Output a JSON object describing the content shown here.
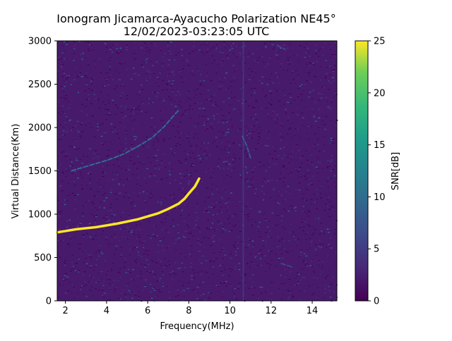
{
  "chart_data": {
    "type": "heatmap",
    "title_line1": "Ionogram Jicamarca-Ayacucho Polarization NE45°",
    "title_line2": "12/02/2023-03:23:05 UTC",
    "xlabel": "Frequency(MHz)",
    "ylabel": "Virtual Distance(Km)",
    "colorbar_label": "SNR[dB]",
    "colormap": "viridis",
    "xlim": [
      1.6,
      15.2
    ],
    "ylim": [
      0,
      3000
    ],
    "clim": [
      0,
      25
    ],
    "x_ticks": [
      2,
      4,
      6,
      8,
      10,
      12,
      14
    ],
    "x_tick_labels": [
      "2",
      "4",
      "6",
      "8",
      "10",
      "12",
      "14"
    ],
    "y_ticks": [
      0,
      500,
      1000,
      1500,
      2000,
      2500,
      3000
    ],
    "y_tick_labels": [
      "0",
      "500",
      "1000",
      "1500",
      "2000",
      "2500",
      "3000"
    ],
    "colorbar_ticks": [
      0,
      5,
      10,
      15,
      20,
      25
    ],
    "colorbar_tick_labels": [
      "0",
      "5",
      "10",
      "15",
      "20",
      "25"
    ],
    "background_snr_db": 1.5,
    "traces": [
      {
        "name": "",
        "snr_db": 25,
        "points": [
          [
            1.6,
            790
          ],
          [
            2.5,
            825
          ],
          [
            3.5,
            850
          ],
          [
            4.5,
            890
          ],
          [
            5.5,
            940
          ],
          [
            6.5,
            1010
          ],
          [
            7.0,
            1060
          ],
          [
            7.5,
            1120
          ],
          [
            7.8,
            1180
          ],
          [
            8.0,
            1240
          ],
          [
            8.3,
            1320
          ],
          [
            8.5,
            1410
          ]
        ]
      },
      {
        "name": "",
        "snr_db": 10,
        "points": [
          [
            2.3,
            1500
          ],
          [
            3.0,
            1550
          ],
          [
            4.0,
            1620
          ],
          [
            4.8,
            1690
          ],
          [
            5.5,
            1780
          ],
          [
            6.2,
            1880
          ],
          [
            6.8,
            2010
          ],
          [
            7.2,
            2120
          ],
          [
            7.5,
            2200
          ]
        ]
      },
      {
        "name": "",
        "snr_db": 8,
        "points": [
          [
            10.6,
            1900
          ],
          [
            10.8,
            1800
          ],
          [
            11.0,
            1650
          ]
        ]
      },
      {
        "name": "",
        "snr_db": 6,
        "points": [
          [
            12.3,
            2950
          ],
          [
            12.7,
            2900
          ]
        ]
      },
      {
        "name": "",
        "snr_db": 6,
        "points": [
          [
            12.5,
            430
          ],
          [
            13.0,
            390
          ]
        ]
      }
    ]
  }
}
